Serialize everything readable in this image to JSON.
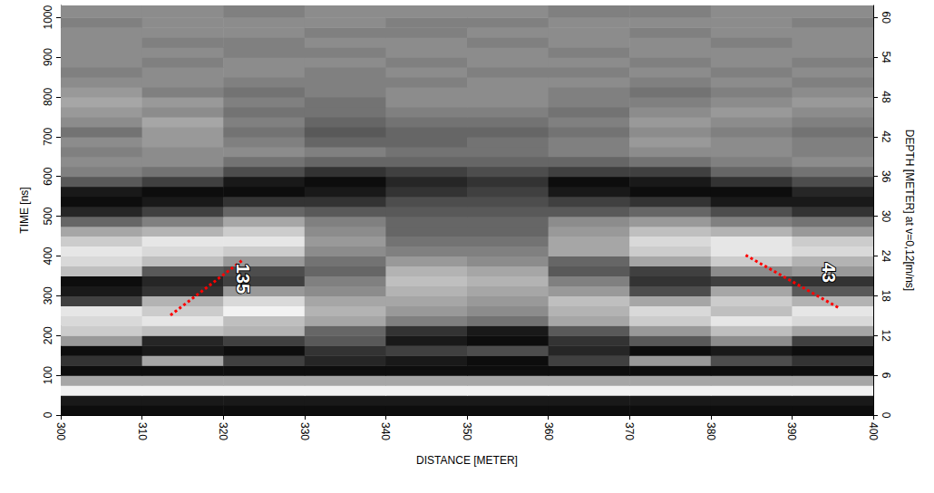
{
  "chart_data": {
    "type": "heatmap",
    "x_label": "DISTANCE [METER]",
    "y_label": "TIME [ns]",
    "y2_label": "DEPTH [METER] at v=0,12[m/ns]",
    "xlim": [
      300,
      400
    ],
    "xticks": [
      300,
      310,
      320,
      330,
      340,
      350,
      360,
      370,
      380,
      390,
      400
    ],
    "ylim": [
      0,
      1030
    ],
    "yticks": [
      0,
      100,
      200,
      300,
      400,
      500,
      600,
      700,
      800,
      900,
      1000
    ],
    "y2lim": [
      0,
      61.8
    ],
    "y2ticks": [
      0,
      6,
      12,
      18,
      24,
      30,
      36,
      42,
      48,
      54,
      60
    ],
    "x_bins": [
      300,
      310,
      320,
      330,
      340,
      350,
      360,
      370,
      380,
      390,
      400
    ],
    "y_bins": [
      0,
      25,
      50,
      75,
      100,
      125,
      150,
      175,
      200,
      225,
      250,
      275,
      300,
      325,
      350,
      375,
      400,
      425,
      450,
      475,
      500,
      525,
      550,
      575,
      600,
      625,
      650,
      675,
      700,
      725,
      750,
      775,
      800,
      825,
      850,
      875,
      900,
      925,
      950,
      975,
      1000,
      1030
    ],
    "amplitude_range": [
      -1,
      1
    ],
    "amplitude": [
      [
        -0.9,
        -0.9,
        -0.9,
        -0.9,
        -0.9,
        -0.9,
        -0.9,
        -0.9,
        -0.9,
        -0.9
      ],
      [
        -0.8,
        -0.8,
        -0.8,
        -0.8,
        -0.8,
        -0.8,
        -0.8,
        -0.8,
        -0.8,
        -0.8
      ],
      [
        0.9,
        0.9,
        0.9,
        0.9,
        0.9,
        0.9,
        0.9,
        0.9,
        0.9,
        0.9
      ],
      [
        0.3,
        0.3,
        0.3,
        0.3,
        0.3,
        0.3,
        0.3,
        0.3,
        0.3,
        0.3
      ],
      [
        -0.9,
        -0.9,
        -0.9,
        -0.9,
        -0.9,
        -0.9,
        -0.9,
        -0.9,
        -0.9,
        -0.9
      ],
      [
        -0.6,
        0.3,
        -0.5,
        -0.7,
        -0.8,
        -0.9,
        -0.5,
        0.2,
        -0.4,
        -0.6
      ],
      [
        -0.9,
        -0.8,
        -0.9,
        -0.6,
        -0.5,
        -0.4,
        -0.7,
        -0.9,
        -0.8,
        -0.9
      ],
      [
        0.2,
        -0.7,
        -0.5,
        -0.3,
        -0.8,
        -0.9,
        -0.6,
        -0.3,
        0.1,
        -0.5
      ],
      [
        0.6,
        0.5,
        0.4,
        -0.2,
        -0.6,
        -0.8,
        -0.3,
        0.2,
        0.5,
        0.3
      ],
      [
        0.7,
        0.8,
        0.5,
        0.3,
        0.0,
        -0.1,
        0.3,
        0.6,
        0.8,
        0.7
      ],
      [
        0.8,
        0.6,
        0.9,
        0.4,
        0.2,
        0.1,
        0.4,
        0.7,
        0.5,
        0.8
      ],
      [
        -0.5,
        0.4,
        0.7,
        0.3,
        0.3,
        0.2,
        0.5,
        0.3,
        0.6,
        0.4
      ],
      [
        -0.8,
        -0.6,
        0.2,
        0.1,
        0.4,
        0.3,
        0.2,
        -0.4,
        0.3,
        -0.3
      ],
      [
        -0.9,
        -0.7,
        -0.5,
        0.0,
        0.5,
        0.4,
        0.0,
        -0.6,
        -0.5,
        -0.6
      ],
      [
        0.5,
        -0.3,
        -0.4,
        -0.2,
        0.4,
        0.3,
        -0.3,
        -0.5,
        0.1,
        0.2
      ],
      [
        0.7,
        0.5,
        0.2,
        -0.1,
        0.2,
        0.1,
        -0.2,
        0.3,
        0.6,
        0.4
      ],
      [
        0.8,
        0.7,
        0.6,
        0.1,
        0.0,
        0.0,
        0.3,
        0.6,
        0.8,
        0.7
      ],
      [
        0.6,
        0.8,
        0.8,
        0.2,
        -0.1,
        -0.1,
        0.3,
        0.7,
        0.8,
        0.6
      ],
      [
        0.3,
        0.4,
        0.6,
        0.1,
        -0.2,
        -0.2,
        0.2,
        0.5,
        0.4,
        0.2
      ],
      [
        -0.2,
        0.0,
        0.3,
        0.0,
        -0.2,
        -0.2,
        0.1,
        0.2,
        0.0,
        -0.1
      ],
      [
        -0.7,
        -0.5,
        -0.2,
        -0.3,
        -0.3,
        -0.3,
        -0.3,
        -0.2,
        -0.4,
        -0.6
      ],
      [
        -0.9,
        -0.8,
        -0.6,
        -0.6,
        -0.4,
        -0.4,
        -0.5,
        -0.6,
        -0.8,
        -0.8
      ],
      [
        -0.8,
        -0.9,
        -0.9,
        -0.8,
        -0.6,
        -0.5,
        -0.8,
        -0.9,
        -0.9,
        -0.7
      ],
      [
        -0.3,
        -0.5,
        -0.8,
        -0.9,
        -0.7,
        -0.6,
        -0.9,
        -0.8,
        -0.6,
        -0.4
      ],
      [
        0.0,
        -0.1,
        -0.4,
        -0.6,
        -0.5,
        -0.4,
        -0.5,
        -0.5,
        -0.2,
        -0.1
      ],
      [
        0.1,
        0.1,
        -0.1,
        -0.2,
        -0.2,
        -0.2,
        -0.2,
        -0.1,
        0.0,
        0.1
      ],
      [
        0.0,
        0.1,
        0.1,
        0.0,
        -0.1,
        -0.1,
        0.0,
        0.1,
        0.1,
        0.0
      ],
      [
        0.1,
        0.2,
        0.0,
        -0.2,
        -0.2,
        -0.1,
        0.0,
        0.2,
        0.1,
        0.0
      ],
      [
        -0.1,
        0.2,
        -0.1,
        -0.3,
        -0.2,
        -0.2,
        -0.1,
        0.1,
        0.0,
        -0.1
      ],
      [
        0.1,
        0.3,
        0.0,
        -0.2,
        -0.1,
        -0.1,
        0.0,
        0.2,
        0.1,
        0.0
      ],
      [
        0.2,
        0.1,
        -0.1,
        -0.1,
        0.0,
        0.0,
        -0.1,
        0.1,
        0.2,
        0.1
      ],
      [
        0.3,
        0.2,
        0.0,
        -0.1,
        0.1,
        0.1,
        0.0,
        0.0,
        0.1,
        0.2
      ],
      [
        0.2,
        0.0,
        -0.1,
        0.0,
        0.1,
        0.1,
        0.0,
        -0.1,
        0.0,
        0.1
      ],
      [
        0.1,
        0.1,
        0.0,
        0.0,
        0.0,
        0.1,
        0.1,
        0.0,
        0.1,
        0.0
      ],
      [
        0.0,
        0.1,
        0.1,
        0.0,
        0.1,
        0.0,
        0.0,
        0.1,
        0.0,
        0.1
      ],
      [
        0.1,
        0.0,
        0.1,
        0.1,
        0.0,
        0.1,
        0.1,
        0.0,
        0.1,
        0.0
      ],
      [
        0.1,
        0.1,
        0.0,
        0.0,
        0.1,
        0.1,
        0.0,
        0.1,
        0.1,
        0.1
      ],
      [
        0.1,
        0.0,
        0.0,
        0.1,
        0.1,
        0.0,
        0.1,
        0.1,
        0.0,
        0.1
      ],
      [
        0.1,
        0.1,
        0.1,
        0.0,
        0.0,
        0.1,
        0.1,
        0.0,
        0.1,
        0.1
      ],
      [
        0.0,
        0.1,
        0.1,
        0.1,
        0.0,
        0.0,
        0.1,
        0.1,
        0.1,
        0.0
      ],
      [
        0.1,
        0.1,
        0.0,
        0.1,
        0.1,
        0.1,
        0.0,
        0.0,
        0.1,
        0.1
      ]
    ],
    "annotations": [
      {
        "text": "135",
        "x": [
          313.5,
          322.4
        ],
        "y": [
          251,
          390
        ],
        "color": "#ff0000",
        "line_style": "dotted"
      },
      {
        "text": "43",
        "x": [
          384.3,
          395.8
        ],
        "y": [
          402,
          269
        ],
        "color": "#ff0000",
        "line_style": "dotted"
      }
    ]
  }
}
